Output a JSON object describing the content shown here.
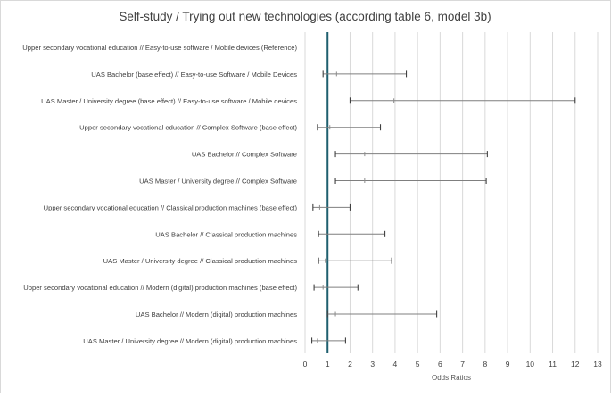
{
  "chart_data": {
    "type": "forest",
    "title": "Self-study / Trying out new technologies (according table 6, model 3b)",
    "xlabel": "Odds Ratios",
    "xlim": [
      0,
      13
    ],
    "xticks": [
      "0",
      "1",
      "2",
      "3",
      "4",
      "5",
      "6",
      "7",
      "8",
      "9",
      "10",
      "11",
      "12",
      "13"
    ],
    "reference_line": 1,
    "grid": true,
    "colors": {
      "reference_line": "#1f5f6e",
      "whisker": "#7f7f7f",
      "grid": "#d9d9d9",
      "text": "#404040"
    },
    "rows": [
      {
        "label": "Upper secondary vocational education // Easy-to-use software / Mobile devices (Reference)",
        "estimate": null,
        "low": null,
        "high": null
      },
      {
        "label": "UAS Bachelor (base effect) // Easy-to-use Software / Mobile Devices",
        "estimate": 1.4,
        "low": 0.8,
        "high": 4.5
      },
      {
        "label": "UAS Master / University degree (base effect) // Easy-to-use software / Mobile devices",
        "estimate": 3.95,
        "low": 2.0,
        "high": 12.0
      },
      {
        "label": "Upper secondary vocational education // Complex Software (base effect)",
        "estimate": 1.1,
        "low": 0.55,
        "high": 3.35
      },
      {
        "label": "UAS Bachelor // Complex Software",
        "estimate": 2.65,
        "low": 1.35,
        "high": 8.1
      },
      {
        "label": "UAS Master / University degree // Complex Software",
        "estimate": 2.65,
        "low": 1.35,
        "high": 8.05
      },
      {
        "label": "Upper secondary vocational education // Classical production machines (base effect)",
        "estimate": 0.65,
        "low": 0.35,
        "high": 2.0
      },
      {
        "label": "UAS Bachelor // Classical production machines",
        "estimate": 0.95,
        "low": 0.6,
        "high": 3.55
      },
      {
        "label": "UAS Master / University degree // Classical production machines",
        "estimate": 0.9,
        "low": 0.6,
        "high": 3.85
      },
      {
        "label": "Upper secondary vocational education // Modern (digital) production machines (base effect)",
        "estimate": 0.8,
        "low": 0.4,
        "high": 2.35
      },
      {
        "label": "UAS Bachelor // Modern (digital) production machines",
        "estimate": 1.35,
        "low": 1.0,
        "high": 5.85
      },
      {
        "label": "UAS Master / University degree // Modern (digital) production machines",
        "estimate": 0.55,
        "low": 0.3,
        "high": 1.8
      }
    ]
  }
}
